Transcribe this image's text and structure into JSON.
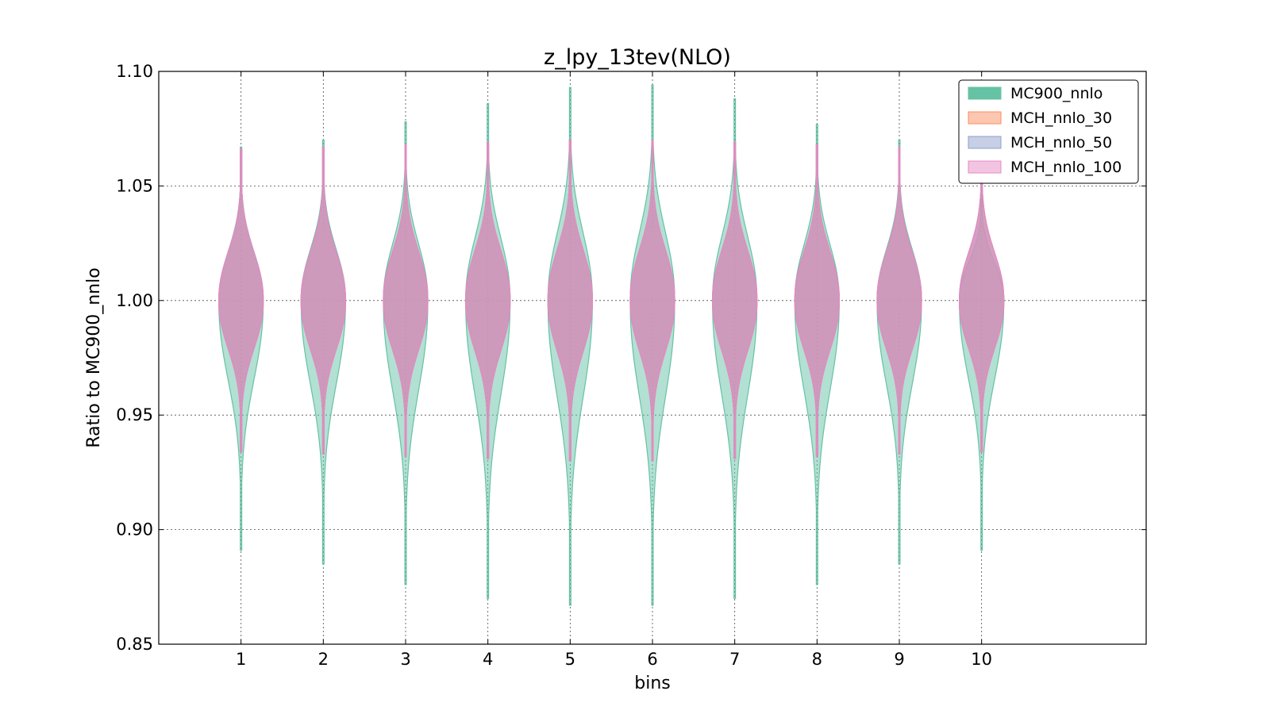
{
  "chart_data": {
    "type": "violin",
    "title": "z_lpy_13tev(NLO)",
    "xlabel": "bins",
    "ylabel": "Ratio to MC900_nnlo",
    "categories": [
      "1",
      "2",
      "3",
      "4",
      "5",
      "6",
      "7",
      "8",
      "9",
      "10"
    ],
    "x": [
      1,
      2,
      3,
      4,
      5,
      6,
      7,
      8,
      9,
      10
    ],
    "xlim": [
      0,
      12
    ],
    "ylim": [
      0.85,
      1.1
    ],
    "yticks": [
      "0.85",
      "0.90",
      "0.95",
      "1.00",
      "1.05",
      "1.10"
    ],
    "grid": true,
    "legend_position": "top-right",
    "series": [
      {
        "name": "MC900_nnlo",
        "color": "#66c2a5",
        "center": [
          1.0,
          1.0,
          1.0,
          1.0,
          1.0,
          1.0,
          1.0,
          1.0,
          1.0,
          1.0
        ],
        "min": [
          0.891,
          0.885,
          0.876,
          0.87,
          0.867,
          0.867,
          0.87,
          0.876,
          0.885,
          0.891
        ],
        "max": [
          1.067,
          1.07,
          1.078,
          1.086,
          1.093,
          1.094,
          1.088,
          1.077,
          1.07,
          1.052
        ],
        "half_width": [
          0.27,
          0.27,
          0.27,
          0.27,
          0.27,
          0.27,
          0.27,
          0.27,
          0.27,
          0.27
        ]
      },
      {
        "name": "MCH_nnlo_30",
        "color": "#fc8d62",
        "center": [
          1.0,
          1.0,
          1.0,
          1.0,
          1.0,
          1.0,
          1.0,
          1.0,
          1.0,
          1.0
        ],
        "min": [
          0.934,
          0.933,
          0.932,
          0.931,
          0.93,
          0.93,
          0.931,
          0.932,
          0.933,
          0.934
        ],
        "max": [
          1.066,
          1.067,
          1.068,
          1.069,
          1.07,
          1.07,
          1.069,
          1.068,
          1.067,
          1.066
        ],
        "half_width": [
          0.27,
          0.27,
          0.27,
          0.27,
          0.27,
          0.27,
          0.27,
          0.27,
          0.27,
          0.27
        ]
      },
      {
        "name": "MCH_nnlo_50",
        "color": "#8da0cb",
        "center": [
          1.0,
          1.0,
          1.0,
          1.0,
          1.0,
          1.0,
          1.0,
          1.0,
          1.0,
          1.0
        ],
        "min": [
          0.934,
          0.933,
          0.932,
          0.931,
          0.93,
          0.93,
          0.931,
          0.932,
          0.933,
          0.934
        ],
        "max": [
          1.066,
          1.067,
          1.068,
          1.069,
          1.07,
          1.07,
          1.069,
          1.068,
          1.067,
          1.066
        ],
        "half_width": [
          0.27,
          0.27,
          0.27,
          0.27,
          0.27,
          0.27,
          0.27,
          0.27,
          0.27,
          0.27
        ]
      },
      {
        "name": "MCH_nnlo_100",
        "color": "#e78ac3",
        "center": [
          1.0,
          1.0,
          1.0,
          1.0,
          1.0,
          1.0,
          1.0,
          1.0,
          1.0,
          1.0
        ],
        "min": [
          0.934,
          0.933,
          0.932,
          0.931,
          0.93,
          0.93,
          0.931,
          0.932,
          0.933,
          0.934
        ],
        "max": [
          1.066,
          1.067,
          1.068,
          1.069,
          1.07,
          1.07,
          1.069,
          1.068,
          1.067,
          1.066
        ],
        "half_width": [
          0.27,
          0.27,
          0.27,
          0.27,
          0.27,
          0.27,
          0.27,
          0.27,
          0.27,
          0.27
        ]
      }
    ]
  }
}
